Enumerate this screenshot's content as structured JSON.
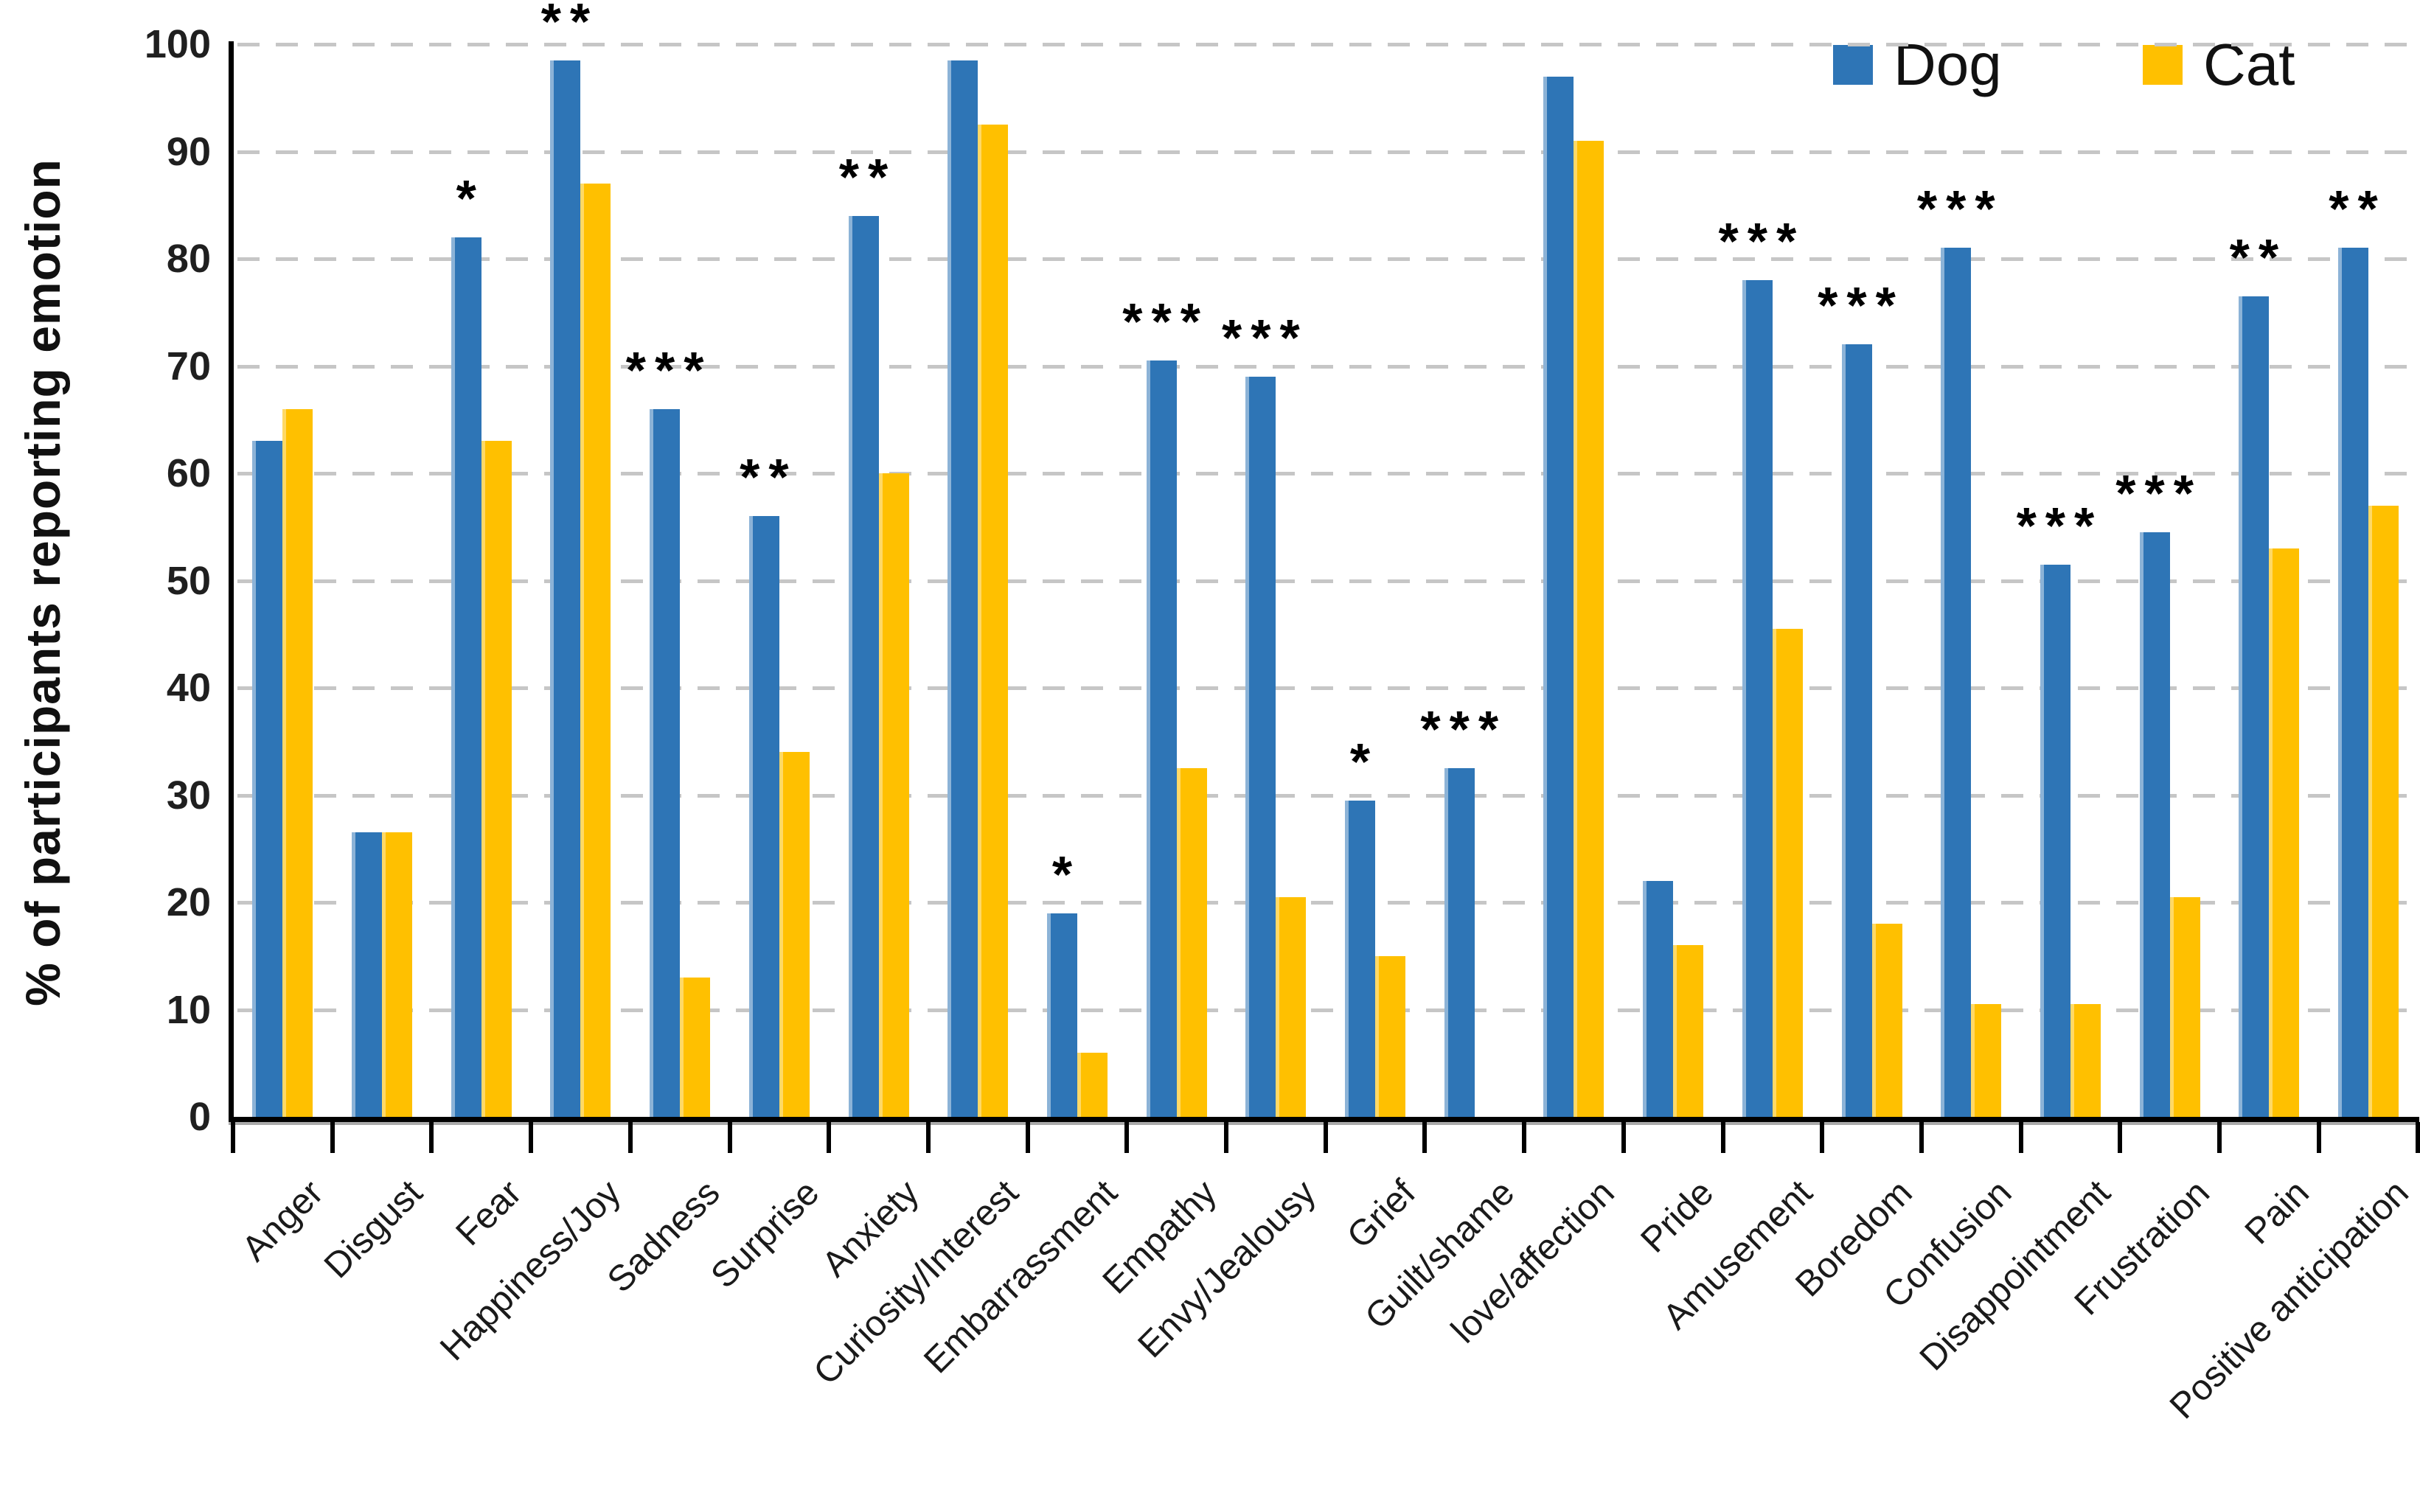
{
  "figure": {
    "ylabel": "% of participants reporting emotion"
  },
  "legend": {
    "items": [
      {
        "label": "Dog",
        "color": "#2E75B6"
      },
      {
        "label": "Cat",
        "color": "#FFC000"
      }
    ]
  },
  "chart_data": {
    "type": "bar",
    "title": "",
    "xlabel": "",
    "ylabel": "% of participants reporting emotion",
    "ylim": [
      0,
      100
    ],
    "yticks": [
      0,
      10,
      20,
      30,
      40,
      50,
      60,
      70,
      80,
      90,
      100
    ],
    "grid": "horizontal-dashed",
    "legend_position": "top-right",
    "categories": [
      "Anger",
      "Disgust",
      "Fear",
      "Happiness/Joy",
      "Sadness",
      "Surprise",
      "Anxiety",
      "Curiosity/Interest",
      "Embarrassment",
      "Empathy",
      "Envy/Jealousy",
      "Grief",
      "Guilt/shame",
      "love/affection",
      "Pride",
      "Amusement",
      "Boredom",
      "Confusion",
      "Disappointment",
      "Frustration",
      "Pain",
      "Positive anticipation"
    ],
    "series": [
      {
        "name": "Dog",
        "color": "#2E75B6",
        "values": [
          63,
          26.5,
          82,
          98.5,
          66,
          56,
          84,
          98.5,
          19,
          70.5,
          69,
          29.5,
          32.5,
          97,
          22,
          78,
          72,
          81,
          51.5,
          54.5,
          76.5,
          81
        ]
      },
      {
        "name": "Cat",
        "color": "#FFC000",
        "values": [
          66,
          26.5,
          63,
          87,
          13,
          34,
          60,
          92.5,
          6,
          32.5,
          20.5,
          15,
          0,
          91,
          16,
          45.5,
          18,
          10.5,
          10.5,
          20.5,
          53,
          57
        ]
      }
    ],
    "significance": [
      "",
      "",
      "*",
      "**",
      "***",
      "**",
      "**",
      "",
      "*",
      "***",
      "***",
      "*",
      "***",
      "",
      "",
      "***",
      "***",
      "***",
      "***",
      "***",
      "**",
      "**"
    ]
  }
}
